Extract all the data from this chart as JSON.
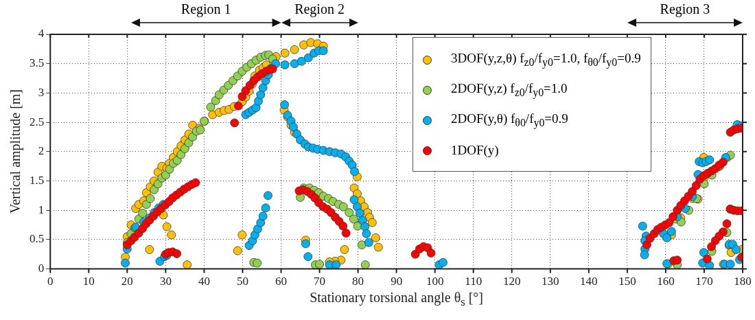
{
  "chart_data": {
    "type": "scatter",
    "xlabel": "Stationary torsional angle θ$_{s}$ [°]",
    "ylabel": "Vertical amplitude [m]",
    "annotations": [
      "Region 1",
      "Region 2",
      "Region 3"
    ],
    "xlim": [
      0,
      180
    ],
    "xticks": [
      0,
      10,
      20,
      30,
      40,
      50,
      60,
      70,
      80,
      90,
      100,
      110,
      120,
      130,
      140,
      150,
      160,
      170,
      180
    ],
    "ylim": [
      0,
      4
    ],
    "yticks": [
      0,
      0.5,
      1,
      1.5,
      2,
      2.5,
      3,
      3.5,
      4
    ],
    "grid": true,
    "legend": "top right",
    "marker": "circle",
    "series": [
      {
        "name": "3DOF(y,z,θ) f$_{z0}$/f$_{y0}$=1.0, f$_{θ0}$/f$_{y0}$=0.9",
        "color": "#ffc000",
        "x": [
          19.5,
          20,
          21,
          22.2,
          23,
          24.3,
          25,
          26,
          27,
          28,
          29,
          30.3,
          31,
          32,
          33,
          34,
          35,
          36,
          37,
          38.7,
          40.1,
          42.2,
          43.9,
          45.2,
          46.5,
          47.8,
          49.9,
          50.8,
          51.7,
          52.5,
          53.2,
          54.4,
          55.3,
          56.2,
          58.7,
          61,
          63.5,
          65.9,
          67.7,
          69.5,
          71,
          60.8,
          61.7,
          62.6,
          63.5,
          79.8,
          79,
          79.8,
          80.7,
          81.6,
          82.5,
          83,
          83.7,
          84.6,
          85.3,
          66.4,
          76.5,
          75.6,
          74,
          72.6,
          25.8,
          29.4,
          30.3,
          31.5,
          35.6,
          48.7,
          49.9,
          162.7,
          163.9,
          168.4,
          169.9,
          161.5,
          160.6,
          176.5,
          179.8,
          177,
          175,
          167,
          170,
          174,
          176
        ],
        "values": [
          0.2,
          0.55,
          0.75,
          1.03,
          1.1,
          1.16,
          1.3,
          1.4,
          1.5,
          1.65,
          1.75,
          1.72,
          1.8,
          1.9,
          2.0,
          2.1,
          2.2,
          2.3,
          2.45,
          2.4,
          2.52,
          2.63,
          2.67,
          2.7,
          2.72,
          2.77,
          2.85,
          2.93,
          3.03,
          3.15,
          3.29,
          3.39,
          3.43,
          3.48,
          3.62,
          3.68,
          3.74,
          3.82,
          3.86,
          3.84,
          3.8,
          2.71,
          2.59,
          2.45,
          2.33,
          1.57,
          1.38,
          1.28,
          1.16,
          1.06,
          0.96,
          0.88,
          0.79,
          0.53,
          0.37,
          0.49,
          0.33,
          0.15,
          0.13,
          0.12,
          0.33,
          0.92,
          0.72,
          0.58,
          0.07,
          0.31,
          0.58,
          0.85,
          0.87,
          1.19,
          1.9,
          0.58,
          0.08,
          0.4,
          0.33,
          0.28,
          0.08,
          1.2,
          1.55,
          1.75,
          1.9
        ]
      },
      {
        "name": "2DOF(y,z) f$_{z0}$/f$_{y0}$=1.0",
        "color": "#92d050",
        "x": [
          20,
          21,
          22,
          23,
          24,
          25,
          26,
          27,
          28,
          29,
          30,
          31,
          32,
          33,
          34,
          35,
          36,
          37,
          38,
          39,
          40,
          41.7,
          43,
          43.9,
          45.1,
          46.3,
          47.5,
          48.7,
          49.9,
          51.1,
          52.3,
          53.5,
          54.7,
          55.9,
          56.8,
          57.8,
          52.9,
          53.8,
          65,
          65.9,
          67.4,
          68.6,
          69.8,
          71,
          72.3,
          73.5,
          75,
          76.2,
          77.7,
          78.9,
          79.9,
          81,
          81.9,
          68.9,
          70,
          163,
          176.8,
          175.9,
          172,
          164,
          166,
          168,
          170,
          172,
          174,
          176.8
        ],
        "values": [
          0.45,
          0.6,
          0.7,
          0.85,
          0.95,
          1.1,
          1.2,
          1.35,
          1.45,
          1.55,
          1.6,
          1.7,
          1.8,
          1.85,
          1.95,
          2.05,
          2.15,
          2.25,
          2.35,
          2.37,
          2.52,
          2.76,
          2.87,
          2.97,
          3.05,
          3.13,
          3.21,
          3.29,
          3.37,
          3.44,
          3.5,
          3.56,
          3.61,
          3.64,
          3.65,
          3.58,
          0.11,
          0.1,
          1.22,
          1.38,
          1.38,
          1.34,
          1.3,
          1.24,
          1.2,
          1.15,
          1.1,
          1.06,
          0.96,
          0.85,
          0.73,
          0.41,
          0.07,
          0.07,
          0.08,
          0.07,
          1.94,
          0.62,
          0.3,
          0.8,
          1.0,
          1.2,
          1.45,
          1.6,
          1.75,
          1.02
        ]
      },
      {
        "name": "2DOF(y,θ) f$_{θ0}$/f$_{y0}$=0.9",
        "color": "#00b0f0",
        "x": [
          19.5,
          20,
          22.2,
          24.3,
          25.8,
          27,
          28.2,
          29.4,
          28.5,
          29.7,
          30.3,
          50.8,
          51.7,
          52.6,
          53.5,
          54.1,
          54.7,
          55.3,
          56,
          56.7,
          57.4,
          58.6,
          61,
          63.5,
          65.3,
          67.1,
          68.6,
          69.8,
          71,
          51.7,
          52.6,
          53.2,
          53.9,
          54.7,
          55.3,
          56,
          56.6,
          60.9,
          61.7,
          62.6,
          63.2,
          64.1,
          65,
          66.2,
          67.1,
          68.3,
          69.5,
          71,
          72.6,
          74.1,
          75.6,
          76.8,
          77.7,
          78.5,
          79.1,
          79,
          79.8,
          80.5,
          81.2,
          81.8,
          82.2,
          82.8,
          66.4,
          67,
          72.6,
          74.3,
          101.1,
          102.1,
          154,
          154.9,
          154.6,
          154.6,
          154.5,
          159.4,
          160.3,
          161.5,
          160.3,
          163,
          165.1,
          166.9,
          168.4,
          168.7,
          169.6,
          170.5,
          171.4,
          175.6,
          169.9,
          169.6,
          171.4,
          175.3,
          176.8,
          176.5,
          177.4,
          178.3,
          179.2,
          178.6,
          179.8
        ],
        "values": [
          0.1,
          0.34,
          0.71,
          0.8,
          0.87,
          0.96,
          1.04,
          1.1,
          0.13,
          0.21,
          0.23,
          2.63,
          2.67,
          2.71,
          2.75,
          2.86,
          2.97,
          3.09,
          3.21,
          3.31,
          3.42,
          3.5,
          3.48,
          3.5,
          3.54,
          3.6,
          3.68,
          3.72,
          3.72,
          0.4,
          0.48,
          0.58,
          0.68,
          0.79,
          0.9,
          1.04,
          1.25,
          2.8,
          2.62,
          2.52,
          2.42,
          2.3,
          2.2,
          2.13,
          2.08,
          2.06,
          2.04,
          2.02,
          2.0,
          1.98,
          1.96,
          1.91,
          1.84,
          1.77,
          1.66,
          1.18,
          1.06,
          0.95,
          0.83,
          0.72,
          0.6,
          0.45,
          0.43,
          0.21,
          0.07,
          0.07,
          0.07,
          0.11,
          0.73,
          0.56,
          0.48,
          0.34,
          0.24,
          0.6,
          0.53,
          0.64,
          0.09,
          0.89,
          1.03,
          1.23,
          1.61,
          1.83,
          1.81,
          1.83,
          1.86,
          1.9,
          0.28,
          0.1,
          0.06,
          0.08,
          0.08,
          0.42,
          0.42,
          0.33,
          0.16,
          2.46,
          2.44
        ]
      },
      {
        "name": "1DOF(y)",
        "color": "#ff0000",
        "x": [
          20,
          21,
          21.9,
          23,
          24,
          24.9,
          25.8,
          26.8,
          27.8,
          28.8,
          29.9,
          30.9,
          31.8,
          32.8,
          33.8,
          34.8,
          35.8,
          36.8,
          37.8,
          30,
          30.8,
          31.8,
          32.9,
          47.9,
          48.9,
          49.9,
          50.8,
          51.9,
          52.9,
          53.9,
          55,
          56.1,
          57.1,
          57.8,
          64.7,
          65.7,
          66.8,
          67.9,
          68.8,
          69.8,
          70.9,
          72,
          73,
          74.1,
          75.1,
          76.1,
          76.9,
          94.9,
          96,
          97,
          98.1,
          99,
          155.1,
          155.9,
          157,
          157.9,
          158.8,
          159.9,
          160.9,
          161.9,
          163,
          163.9,
          164.9,
          165.9,
          166.9,
          167.9,
          168.9,
          169.9,
          170.9,
          171.9,
          172.9,
          173.9,
          174.9,
          176.8,
          177.7,
          178.7,
          179.8,
          176.8,
          177.7,
          178.7,
          179.8,
          175.9,
          174.9,
          173.9,
          172.9,
          171.9,
          170.8,
          162.1,
          163,
          179.8
        ],
        "values": [
          0.41,
          0.48,
          0.54,
          0.61,
          0.69,
          0.77,
          0.83,
          0.9,
          0.97,
          1.03,
          1.09,
          1.15,
          1.21,
          1.26,
          1.31,
          1.36,
          1.4,
          1.44,
          1.47,
          0.25,
          0.28,
          0.29,
          0.26,
          2.49,
          2.78,
          2.94,
          3.04,
          3.13,
          3.21,
          3.27,
          3.33,
          3.37,
          3.4,
          3.41,
          1.33,
          1.35,
          1.32,
          1.27,
          1.21,
          1.13,
          1.06,
          1.02,
          0.96,
          0.88,
          0.81,
          0.73,
          0.61,
          0.25,
          0.34,
          0.38,
          0.36,
          0.27,
          0.41,
          0.52,
          0.6,
          0.67,
          0.71,
          0.75,
          0.79,
          0.89,
          1.0,
          1.08,
          1.16,
          1.24,
          1.32,
          1.42,
          1.53,
          1.59,
          1.63,
          1.67,
          1.71,
          1.77,
          1.82,
          2.33,
          2.37,
          2.39,
          2.4,
          1.02,
          1.0,
          0.99,
          0.99,
          0.77,
          0.63,
          0.56,
          0.48,
          0.38,
          0.17,
          0.14,
          0.15,
          0.2
        ]
      }
    ]
  }
}
